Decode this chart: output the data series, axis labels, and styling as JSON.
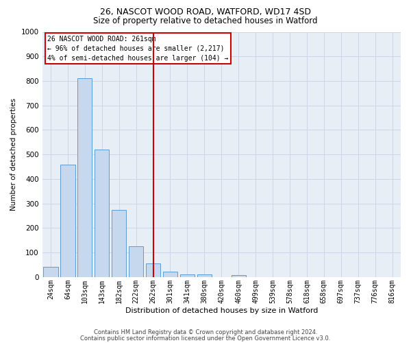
{
  "title1": "26, NASCOT WOOD ROAD, WATFORD, WD17 4SD",
  "title2": "Size of property relative to detached houses in Watford",
  "xlabel": "Distribution of detached houses by size in Watford",
  "ylabel": "Number of detached properties",
  "categories": [
    "24sqm",
    "64sqm",
    "103sqm",
    "143sqm",
    "182sqm",
    "222sqm",
    "262sqm",
    "301sqm",
    "341sqm",
    "380sqm",
    "420sqm",
    "460sqm",
    "499sqm",
    "539sqm",
    "578sqm",
    "618sqm",
    "658sqm",
    "697sqm",
    "737sqm",
    "776sqm",
    "816sqm"
  ],
  "values": [
    43,
    460,
    810,
    520,
    275,
    125,
    57,
    22,
    10,
    10,
    0,
    8,
    0,
    0,
    0,
    0,
    0,
    0,
    0,
    0,
    0
  ],
  "bar_color": "#c5d8ed",
  "bar_edge_color": "#5b9bd5",
  "vline_x_index": 6,
  "annotation_text": "26 NASCOT WOOD ROAD: 261sqm\n← 96% of detached houses are smaller (2,217)\n4% of semi-detached houses are larger (104) →",
  "annotation_box_facecolor": "#ffffff",
  "annotation_box_edgecolor": "#cc0000",
  "vline_color": "#cc0000",
  "grid_color": "#cdd6e8",
  "background_color": "#e8eef5",
  "ylim": [
    0,
    1000
  ],
  "yticks": [
    0,
    100,
    200,
    300,
    400,
    500,
    600,
    700,
    800,
    900,
    1000
  ],
  "title1_fontsize": 9,
  "title2_fontsize": 8.5,
  "xlabel_fontsize": 8,
  "ylabel_fontsize": 7.5,
  "tick_fontsize": 7,
  "footer1": "Contains HM Land Registry data © Crown copyright and database right 2024.",
  "footer2": "Contains public sector information licensed under the Open Government Licence v3.0.",
  "footer_fontsize": 6
}
